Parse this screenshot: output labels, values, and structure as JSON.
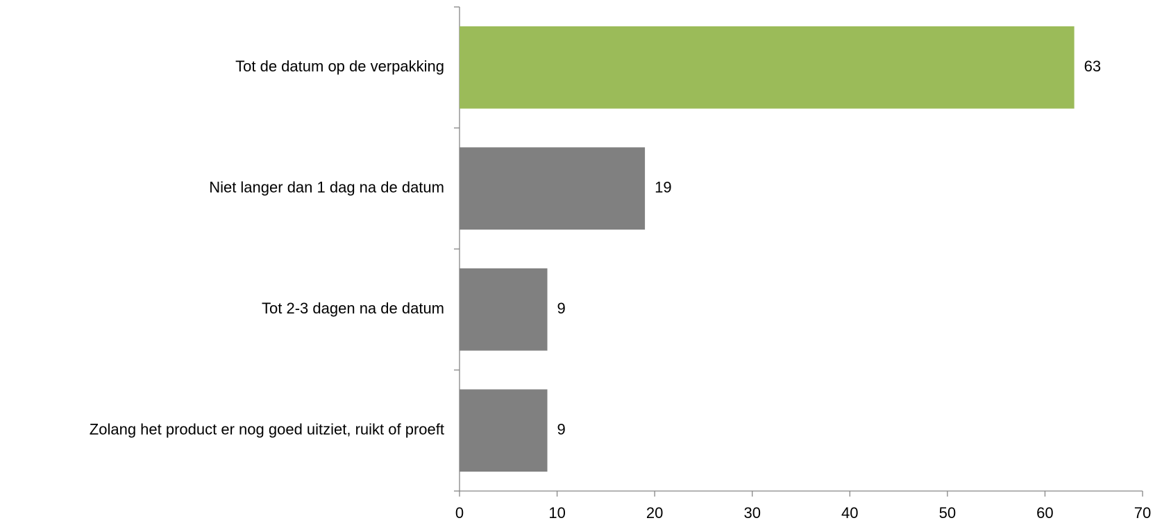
{
  "chart_data": {
    "type": "bar",
    "orientation": "horizontal",
    "categories": [
      "Tot de datum op de verpakking",
      "Niet langer dan 1 dag na de datum",
      "Tot 2-3 dagen na de datum",
      "Zolang het product er nog goed uitziet, ruikt of proeft"
    ],
    "values": [
      63,
      19,
      9,
      9
    ],
    "colors": [
      "#9bbb59",
      "#808080",
      "#808080",
      "#808080"
    ],
    "xlim": [
      0,
      70
    ],
    "xticks": [
      0,
      10,
      20,
      30,
      40,
      50,
      60,
      70
    ],
    "grid": false,
    "data_labels": true
  }
}
